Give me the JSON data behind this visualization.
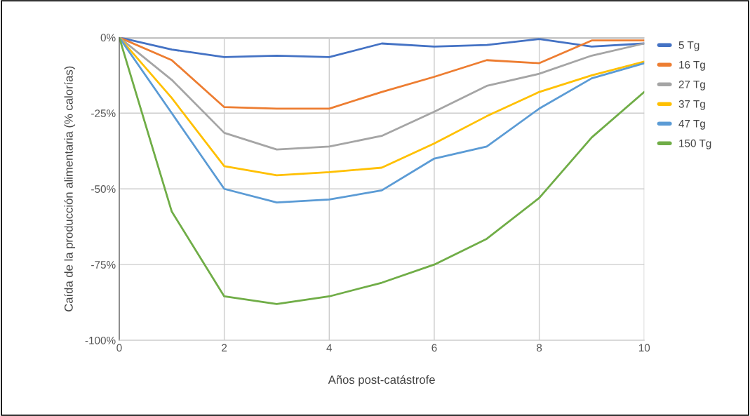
{
  "chart_data": {
    "type": "line",
    "xlabel": "Años post-catástrofe",
    "ylabel": "Caída de la producción alimentaria (% calorías)",
    "x": [
      0,
      1,
      2,
      3,
      4,
      5,
      6,
      7,
      8,
      9,
      10
    ],
    "xlim": [
      0,
      10
    ],
    "xticks": [
      0,
      2,
      4,
      6,
      8,
      10
    ],
    "ylim": [
      -100,
      0
    ],
    "yticks": [
      {
        "value": -100,
        "label": "-100%"
      },
      {
        "value": -75,
        "label": "-75%"
      },
      {
        "value": -50,
        "label": "-50%"
      },
      {
        "value": -25,
        "label": "-25%"
      },
      {
        "value": 0,
        "label": "0%"
      }
    ],
    "grid": true,
    "legend": "right",
    "marker": "none",
    "line_style": "solid",
    "series": [
      {
        "name": "5 Tg",
        "color": "#4472c4",
        "values": [
          0,
          -4,
          -6.5,
          -6,
          -6.5,
          -2,
          -3,
          -2.5,
          -0.5,
          -3,
          -2
        ]
      },
      {
        "name": "16 Tg",
        "color": "#ed7d31",
        "values": [
          0,
          -7.5,
          -23,
          -23.5,
          -23.5,
          -18,
          -13,
          -7.5,
          -8.5,
          -1,
          -1
        ]
      },
      {
        "name": "27 Tg",
        "color": "#a5a5a5",
        "values": [
          0,
          -14,
          -31.5,
          -37,
          -36,
          -32.5,
          -24.5,
          -16,
          -12,
          -6,
          -2
        ]
      },
      {
        "name": "37 Tg",
        "color": "#ffc000",
        "values": [
          0,
          -20,
          -42.5,
          -45.5,
          -44.5,
          -43,
          -35,
          -26,
          -18,
          -12.5,
          -8
        ]
      },
      {
        "name": "47 Tg",
        "color": "#5b9bd5",
        "values": [
          0,
          -25,
          -50,
          -54.5,
          -53.5,
          -50.5,
          -40,
          -36,
          -23.5,
          -13.5,
          -8.5
        ]
      },
      {
        "name": "150 Tg",
        "color": "#70ad47",
        "values": [
          0,
          -57.5,
          -85.5,
          -88,
          -85.5,
          -81,
          -75,
          -66.5,
          -53,
          -33,
          -18
        ]
      }
    ]
  }
}
